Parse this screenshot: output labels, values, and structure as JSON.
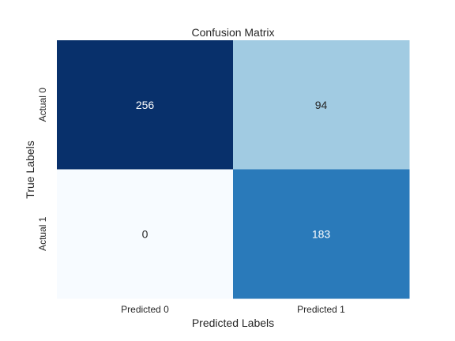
{
  "chart_data": {
    "type": "heatmap",
    "title": "Confusion Matrix",
    "xlabel": "Predicted Labels",
    "ylabel": "True Labels",
    "x_categories": [
      "Predicted 0",
      "Predicted 1"
    ],
    "y_categories": [
      "Actual 0",
      "Actual 1"
    ],
    "values": [
      [
        256,
        94
      ],
      [
        0,
        183
      ]
    ],
    "color_scale": "Blues",
    "colorbar": false,
    "grid": false
  }
}
